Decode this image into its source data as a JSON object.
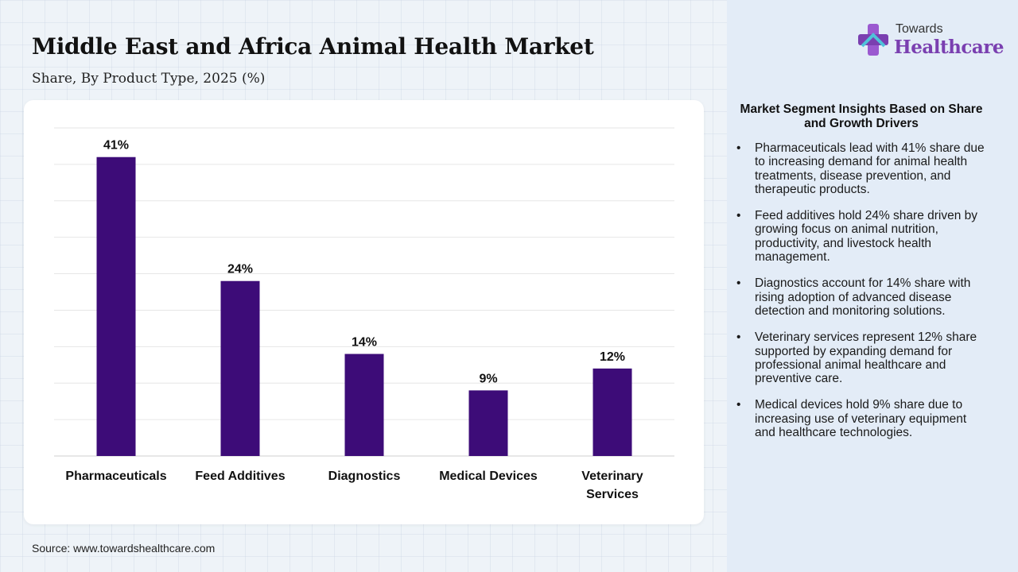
{
  "header": {
    "title": "Middle East and Africa Animal Health Market",
    "subtitle": "Share, By Product Type, 2025 (%)"
  },
  "logo": {
    "line1": "Towards",
    "line2": "Healthcare",
    "icon": "medical-cross-icon"
  },
  "source": "Source: www.towardshealthcare.com",
  "colors": {
    "bar": "#3d0c78",
    "accent": "#7a3fb0",
    "panel": "#e3ecf7"
  },
  "chart_data": {
    "type": "bar",
    "categories": [
      "Pharmaceuticals",
      "Feed Additives",
      "Diagnostics",
      "Medical Devices",
      "Veterinary Services"
    ],
    "category_lines": [
      [
        "Pharmaceuticals"
      ],
      [
        "Feed Additives"
      ],
      [
        "Diagnostics"
      ],
      [
        "Medical Devices"
      ],
      [
        "Veterinary",
        "Services"
      ]
    ],
    "values": [
      41,
      24,
      14,
      9,
      12
    ],
    "data_labels": [
      "41%",
      "24%",
      "14%",
      "9%",
      "12%"
    ],
    "title": "Middle East and Africa Animal Health Market",
    "subtitle": "Share, By Product Type, 2025 (%)",
    "xlabel": "",
    "ylabel": "",
    "ylim": [
      0,
      45
    ],
    "grid": true,
    "legend": "none"
  },
  "insights": {
    "heading": "Market Segment Insights Based on Share and Growth Drivers",
    "items": [
      "Pharmaceuticals lead with 41% share due to increasing demand for animal health treatments, disease prevention, and therapeutic products.",
      "Feed additives hold 24% share driven by growing focus on animal nutrition, productivity, and livestock health management.",
      "Diagnostics account for 14% share with rising adoption of advanced disease detection and monitoring solutions.",
      "Veterinary services represent 12% share supported by expanding demand for professional animal healthcare and preventive care.",
      "Medical devices hold 9% share due to increasing use of veterinary equipment and healthcare technologies."
    ]
  }
}
